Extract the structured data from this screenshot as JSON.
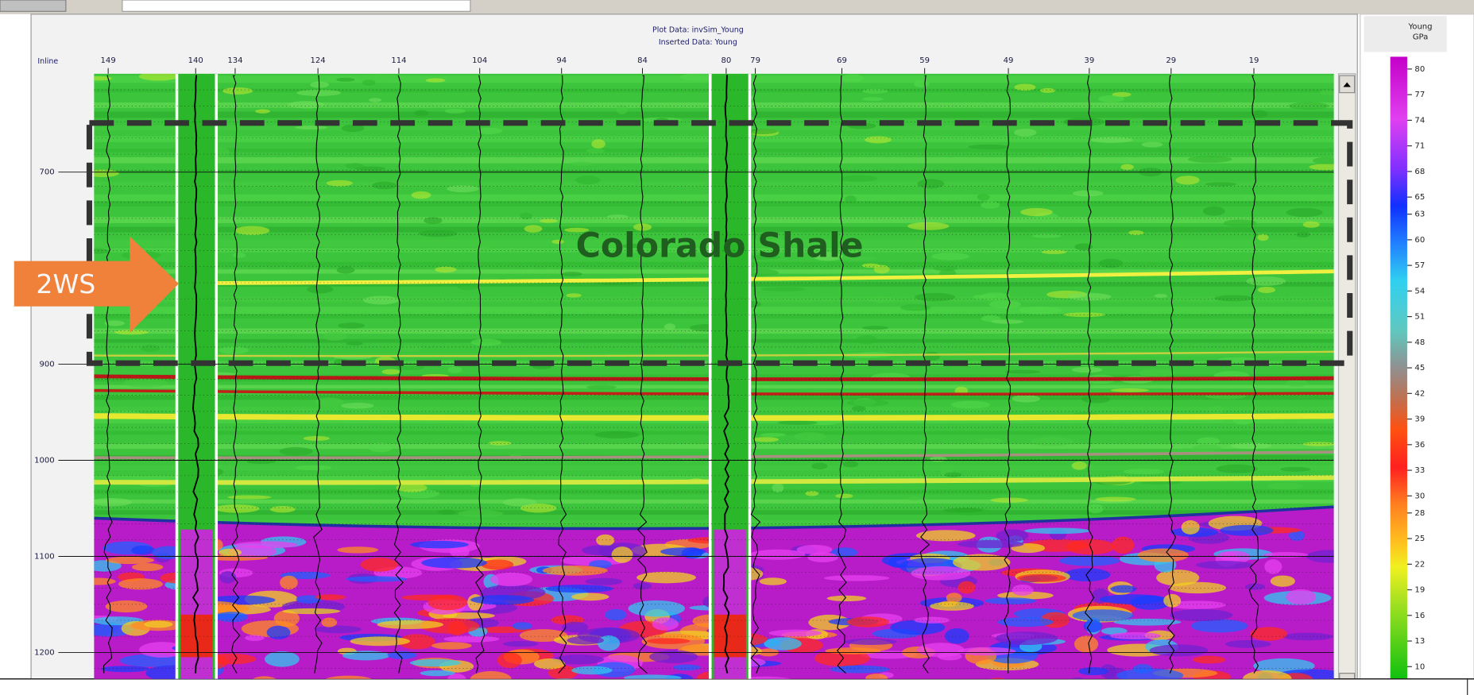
{
  "plot": {
    "title": "Plot Data: invSim_Young",
    "subtitle": "Inserted Data: Young",
    "x_axis_label": "Inline",
    "inline_ticks": [
      149,
      140,
      134,
      124,
      114,
      104,
      94,
      84,
      80,
      79,
      69,
      59,
      49,
      39,
      29,
      19
    ],
    "depth_ticks": [
      700,
      900,
      1000,
      1100,
      1200
    ]
  },
  "annotations": {
    "formation": "Colorado Shale",
    "well_marker": "2WS"
  },
  "colorbar": {
    "title": "Young",
    "unit": "GPa",
    "ticks": [
      80,
      77,
      74,
      71,
      68,
      65,
      63,
      60,
      57,
      54,
      51,
      48,
      45,
      42,
      39,
      36,
      33,
      30,
      28,
      25,
      22,
      19,
      16,
      13,
      10
    ]
  }
}
